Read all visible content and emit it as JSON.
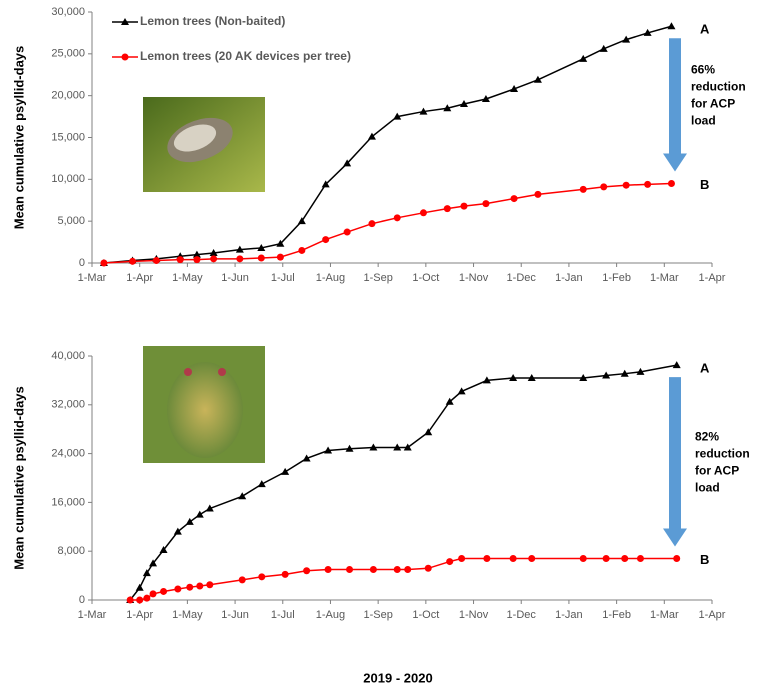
{
  "chart_data": [
    {
      "type": "line",
      "ylabel": "Mean cumulative psyllid-days",
      "xlim": [
        0,
        13
      ],
      "xticks": [
        {
          "value": 0,
          "label": "1-Mar"
        },
        {
          "value": 1,
          "label": "1-Apr"
        },
        {
          "value": 2,
          "label": "1-May"
        },
        {
          "value": 3,
          "label": "1-Jun"
        },
        {
          "value": 4,
          "label": "1-Jul"
        },
        {
          "value": 5,
          "label": "1-Aug"
        },
        {
          "value": 6,
          "label": "1-Sep"
        },
        {
          "value": 7,
          "label": "1-Oct"
        },
        {
          "value": 8,
          "label": "1-Nov"
        },
        {
          "value": 9,
          "label": "1-Dec"
        },
        {
          "value": 10,
          "label": "1-Jan"
        },
        {
          "value": 11,
          "label": "1-Feb"
        },
        {
          "value": 12,
          "label": "1-Mar"
        },
        {
          "value": 13,
          "label": "1-Apr"
        }
      ],
      "ylim": [
        0,
        30000
      ],
      "yticks": [
        {
          "value": 0,
          "label": "0"
        },
        {
          "value": 5000,
          "label": "5,000"
        },
        {
          "value": 10000,
          "label": "10,000"
        },
        {
          "value": 15000,
          "label": "15,000"
        },
        {
          "value": 20000,
          "label": "20,000"
        },
        {
          "value": 25000,
          "label": "25,000"
        },
        {
          "value": 30000,
          "label": "30,000"
        }
      ],
      "x": [
        0.25,
        0.85,
        1.35,
        1.85,
        2.2,
        2.55,
        3.1,
        3.55,
        3.95,
        4.4,
        4.9,
        5.35,
        5.87,
        6.4,
        6.95,
        7.45,
        7.8,
        8.26,
        8.85,
        9.35,
        10.3,
        10.73,
        11.2,
        11.65,
        12.15
      ],
      "series": [
        {
          "name": "Lemon trees (Non-baited)",
          "color": "#000000",
          "marker": "triangle",
          "values": [
            0,
            300,
            500,
            800,
            1000,
            1200,
            1600,
            1800,
            2300,
            5000,
            9400,
            11900,
            15100,
            17500,
            18100,
            18500,
            19000,
            19600,
            20800,
            21900,
            24400,
            25600,
            26700,
            27500,
            28300
          ]
        },
        {
          "name": "Lemon trees (20 AK devices per tree)",
          "color": "#ff0000",
          "marker": "circle",
          "values": [
            0,
            200,
            300,
            400,
            400,
            500,
            500,
            600,
            700,
            1500,
            2800,
            3700,
            4700,
            5400,
            6000,
            6500,
            6800,
            7100,
            7700,
            8200,
            8800,
            9100,
            9300,
            9400,
            9500
          ]
        }
      ],
      "annotations": {
        "top": "A",
        "bottom": "B",
        "reduction": [
          "66%",
          "reduction",
          "for ACP",
          "load"
        ]
      }
    },
    {
      "type": "line",
      "ylabel": "Mean cumulative psyllid-days",
      "xlabel": "2019 - 2020",
      "xlim": [
        0,
        13
      ],
      "xticks": [
        {
          "value": 0,
          "label": "1-Mar"
        },
        {
          "value": 1,
          "label": "1-Apr"
        },
        {
          "value": 2,
          "label": "1-May"
        },
        {
          "value": 3,
          "label": "1-Jun"
        },
        {
          "value": 4,
          "label": "1-Jul"
        },
        {
          "value": 5,
          "label": "1-Aug"
        },
        {
          "value": 6,
          "label": "1-Sep"
        },
        {
          "value": 7,
          "label": "1-Oct"
        },
        {
          "value": 8,
          "label": "1-Nov"
        },
        {
          "value": 9,
          "label": "1-Dec"
        },
        {
          "value": 10,
          "label": "1-Jan"
        },
        {
          "value": 11,
          "label": "1-Feb"
        },
        {
          "value": 12,
          "label": "1-Mar"
        },
        {
          "value": 13,
          "label": "1-Apr"
        }
      ],
      "ylim": [
        0,
        40000
      ],
      "yticks": [
        {
          "value": 0,
          "label": "0"
        },
        {
          "value": 8000,
          "label": "8,000"
        },
        {
          "value": 16000,
          "label": "16,000"
        },
        {
          "value": 24000,
          "label": "24,000"
        },
        {
          "value": 32000,
          "label": "32,000"
        },
        {
          "value": 40000,
          "label": "40,000"
        }
      ],
      "x": [
        0.8,
        1.0,
        1.15,
        1.28,
        1.5,
        1.8,
        2.05,
        2.26,
        2.47,
        3.15,
        3.56,
        4.05,
        4.5,
        4.95,
        5.4,
        5.9,
        6.4,
        6.62,
        7.05,
        7.5,
        7.75,
        8.28,
        8.83,
        9.22,
        10.3,
        10.78,
        11.17,
        11.5,
        12.26
      ],
      "series": [
        {
          "color": "#000000",
          "marker": "triangle",
          "values": [
            0,
            2000,
            4400,
            6000,
            8200,
            11200,
            12800,
            14000,
            15000,
            17000,
            19000,
            21000,
            23200,
            24500,
            24800,
            25000,
            25000,
            25000,
            27500,
            32500,
            34200,
            36000,
            36400,
            36400,
            36400,
            36800,
            37100,
            37400,
            38500
          ]
        },
        {
          "color": "#ff0000",
          "marker": "circle",
          "values": [
            0,
            0,
            300,
            1000,
            1400,
            1800,
            2100,
            2300,
            2500,
            3300,
            3800,
            4200,
            4800,
            5000,
            5000,
            5000,
            5000,
            5000,
            5200,
            6300,
            6800,
            6800,
            6800,
            6800,
            6800,
            6800,
            6800,
            6800,
            6800
          ]
        }
      ],
      "annotations": {
        "top": "A",
        "bottom": "B",
        "reduction": [
          "82%",
          "reduction",
          "for ACP",
          "load"
        ]
      }
    }
  ]
}
